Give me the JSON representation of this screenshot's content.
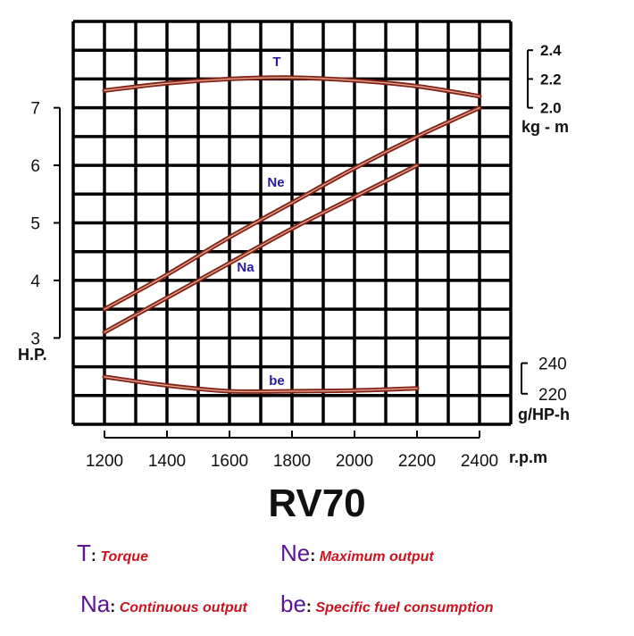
{
  "chart_data": {
    "type": "line",
    "title": "RV70",
    "x": {
      "label": "r.p.m",
      "ticks": [
        1200,
        1400,
        1600,
        1800,
        2000,
        2200,
        2400
      ],
      "range": [
        1000,
        2500
      ]
    },
    "axes": {
      "hp": {
        "label": "H.P.",
        "ticks": [
          3,
          4,
          5,
          6,
          7
        ],
        "position": "left"
      },
      "torque": {
        "label": "kg - m",
        "ticks": [
          "2.4",
          "2.2",
          "2.0"
        ],
        "position": "right-top"
      },
      "fuel": {
        "label": "g/HP-h",
        "ticks": [
          "240",
          "220"
        ],
        "position": "right-bottom"
      }
    },
    "grid": true,
    "series": [
      {
        "name": "T",
        "axis": "torque",
        "x": [
          1200,
          1400,
          1600,
          1800,
          2000,
          2200,
          2400
        ],
        "y": [
          2.12,
          2.17,
          2.2,
          2.21,
          2.19,
          2.15,
          2.08
        ]
      },
      {
        "name": "Ne",
        "axis": "hp",
        "x": [
          1200,
          1400,
          1600,
          1800,
          2000,
          2200,
          2400
        ],
        "y": [
          3.5,
          4.1,
          4.75,
          5.35,
          5.95,
          6.5,
          7.0
        ]
      },
      {
        "name": "Na",
        "axis": "hp",
        "x": [
          1200,
          1400,
          1600,
          1800,
          2000,
          2200
        ],
        "y": [
          3.1,
          3.7,
          4.3,
          4.9,
          5.45,
          6.0
        ]
      },
      {
        "name": "be",
        "axis": "fuel",
        "x": [
          1200,
          1400,
          1600,
          1800,
          2000,
          2200
        ],
        "y": [
          233,
          227,
          223,
          223,
          223.5,
          225
        ]
      }
    ],
    "colors": {
      "curve": "#7e2416",
      "curve_inner": "#eaa08c",
      "series_label": "#2a1aa0",
      "legend_abbr": "#5a1391",
      "legend_desc": "#c8141e"
    }
  },
  "legend": [
    {
      "abbr": "T",
      "desc": "Torque"
    },
    {
      "abbr": "Ne",
      "desc": "Maximum output"
    },
    {
      "abbr": "Na",
      "desc": "Continuous output"
    },
    {
      "abbr": "be",
      "desc": "Specific fuel consumption"
    }
  ],
  "colon": ":"
}
